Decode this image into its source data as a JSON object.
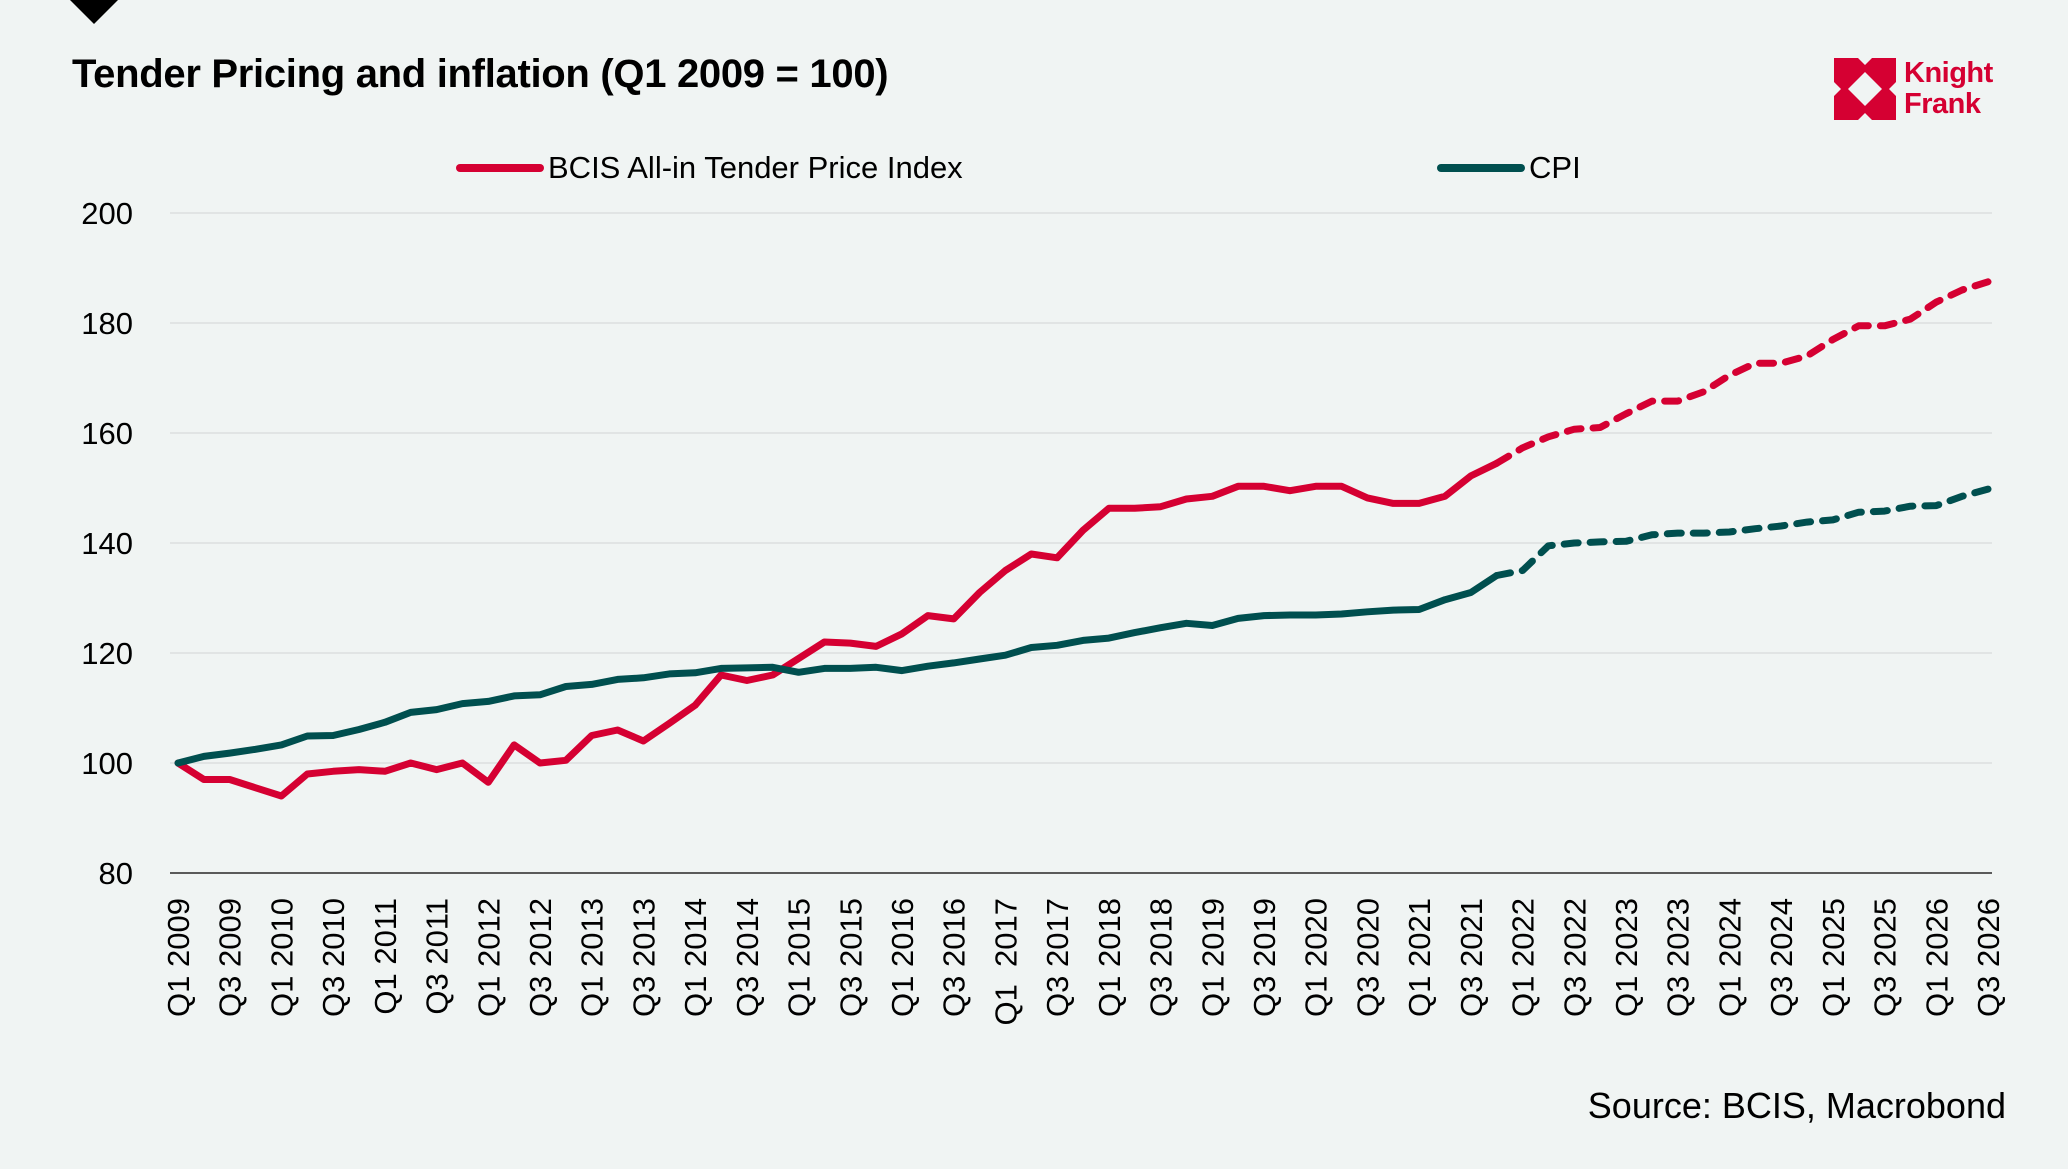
{
  "header": {
    "title": "Tender Pricing and inflation (Q1 2009 = 100)",
    "logo_line1": "Knight",
    "logo_line2": "Frank"
  },
  "footer": {
    "source": "Source: BCIS, Macrobond"
  },
  "colors": {
    "bcis": "#d50032",
    "cpi": "#004f4f",
    "brand": "#d50032",
    "grid": "#dcdfe0",
    "axis": "#5a5a5a"
  },
  "chart_data": {
    "type": "line",
    "title": "Tender Pricing and inflation (Q1 2009 = 100)",
    "xlabel": "",
    "ylabel": "",
    "ylim": [
      80,
      200
    ],
    "yticks": [
      80,
      100,
      120,
      140,
      160,
      180,
      200
    ],
    "grid": true,
    "legend_position": "top",
    "x": [
      "Q1 2009",
      "Q2 2009",
      "Q3 2009",
      "Q4 2009",
      "Q1 2010",
      "Q2 2010",
      "Q3 2010",
      "Q4 2010",
      "Q1 2011",
      "Q2 2011",
      "Q3 2011",
      "Q4 2011",
      "Q1 2012",
      "Q2 2012",
      "Q3 2012",
      "Q4 2012",
      "Q1 2013",
      "Q2 2013",
      "Q3 2013",
      "Q4 2013",
      "Q1 2014",
      "Q2 2014",
      "Q3 2014",
      "Q4 2014",
      "Q1 2015",
      "Q2 2015",
      "Q3 2015",
      "Q4 2015",
      "Q1 2016",
      "Q2 2016",
      "Q3 2016",
      "Q4 2016",
      "Q1 2017",
      "Q2 2017",
      "Q3 2017",
      "Q4 2017",
      "Q1 2018",
      "Q2 2018",
      "Q3 2018",
      "Q4 2018",
      "Q1 2019",
      "Q2 2019",
      "Q3 2019",
      "Q4 2019",
      "Q1 2020",
      "Q2 2020",
      "Q3 2020",
      "Q4 2020",
      "Q1 2021",
      "Q2 2021",
      "Q3 2021",
      "Q4 2021",
      "Q1 2022",
      "Q2 2022",
      "Q3 2022",
      "Q4 2022",
      "Q1 2023",
      "Q2 2023",
      "Q3 2023",
      "Q4 2023",
      "Q1 2024",
      "Q2 2024",
      "Q3 2024",
      "Q4 2024",
      "Q1 2025",
      "Q2 2025",
      "Q3 2025",
      "Q4 2025",
      "Q1 2026",
      "Q2 2026",
      "Q3 2026"
    ],
    "tick_labels": [
      "Q1 2009",
      "Q3 2009",
      "Q1 2010",
      "Q3 2010",
      "Q1 2011",
      "Q3 2011",
      "Q1 2012",
      "Q3 2012",
      "Q1 2013",
      "Q3 2013",
      "Q1 2014",
      "Q3 2014",
      "Q1 2015",
      "Q3 2015",
      "Q1 2016",
      "Q3 2016",
      "Q1  2017",
      "Q3 2017",
      "Q1 2018",
      "Q3 2018",
      "Q1 2019",
      "Q3 2019",
      "Q1 2020",
      "Q3 2020",
      "Q1 2021",
      "Q3 2021",
      "Q1 2022",
      "Q3 2022",
      "Q1 2023",
      "Q3 2023",
      "Q1 2024",
      "Q3 2024",
      "Q1 2025",
      "Q3 2025",
      "Q1 2026",
      "Q3 2026"
    ],
    "forecast_start": "Q4 2021",
    "series": [
      {
        "name": "BCIS All-in Tender Price Index",
        "values": [
          100,
          97,
          97,
          95.5,
          94,
          98,
          98.5,
          98.8,
          98.5,
          100,
          98.8,
          100,
          96.5,
          103.3,
          100,
          100.5,
          105,
          106,
          104,
          107.2,
          110.5,
          116,
          115,
          116,
          119,
          122,
          121.8,
          121.2,
          123.5,
          126.8,
          126.2,
          131,
          135,
          138,
          137.3,
          142.3,
          146.3,
          146.3,
          146.6,
          148,
          148.5,
          150.3,
          150.3,
          149.5,
          150.3,
          150.3,
          148.2,
          147.2,
          147.2,
          148.5,
          152.2,
          154.5,
          157.3,
          159.3,
          160.7,
          161,
          163.5,
          165.8,
          165.8,
          167.5,
          170.5,
          172.7,
          172.7,
          174,
          177,
          179.5,
          179.5,
          180.7,
          183.8,
          186,
          187.5
        ]
      },
      {
        "name": "CPI",
        "values": [
          100,
          101.2,
          101.8,
          102.5,
          103.3,
          104.9,
          105,
          106.1,
          107.4,
          109.2,
          109.7,
          110.8,
          111.2,
          112.2,
          112.4,
          113.9,
          114.3,
          115.2,
          115.5,
          116.2,
          116.4,
          117.2,
          117.3,
          117.4,
          116.5,
          117.2,
          117.2,
          117.4,
          116.8,
          117.6,
          118.2,
          118.9,
          119.6,
          121,
          121.4,
          122.3,
          122.7,
          123.7,
          124.6,
          125.4,
          125,
          126.3,
          126.8,
          126.9,
          126.9,
          127.1,
          127.5,
          127.8,
          127.9,
          129.7,
          131,
          134.1,
          135,
          139.5,
          140,
          140.2,
          140.3,
          141.5,
          141.8,
          141.8,
          142,
          142.6,
          143.1,
          143.8,
          144.2,
          145.6,
          145.8,
          146.7,
          146.8,
          148.5,
          149.8
        ]
      }
    ]
  }
}
